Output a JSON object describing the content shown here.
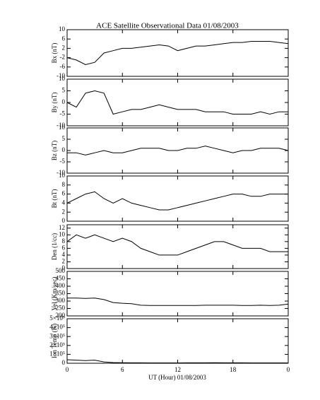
{
  "chart_data": [
    {
      "type": "line",
      "title": "ACE Satellite Observational Data   01/08/2003",
      "ylabel": "Bx (nT)",
      "x": [
        0,
        1,
        2,
        3,
        4,
        5,
        6,
        7,
        8,
        9,
        10,
        11,
        12,
        13,
        14,
        15,
        16,
        17,
        18,
        19,
        20,
        21,
        22,
        23,
        24
      ],
      "values": [
        -2,
        -3,
        -5,
        -4,
        0,
        1,
        2,
        2,
        2.5,
        3,
        3.5,
        3,
        1,
        2,
        3,
        3,
        3.5,
        4,
        4.5,
        4.5,
        5,
        5,
        5,
        4.5,
        4
      ],
      "ylim": [
        -10,
        10
      ],
      "yticks": [
        -10,
        -6,
        -2,
        2,
        6,
        10
      ],
      "color": "#000000"
    },
    {
      "type": "line",
      "ylabel": "By (nT)",
      "x": [
        0,
        1,
        2,
        3,
        4,
        5,
        6,
        7,
        8,
        9,
        10,
        11,
        12,
        13,
        14,
        15,
        16,
        17,
        18,
        19,
        20,
        21,
        22,
        23,
        24
      ],
      "values": [
        0,
        -2,
        4,
        5,
        4,
        -5,
        -4,
        -3,
        -3,
        -2,
        -1,
        -2,
        -3,
        -3,
        -3,
        -4,
        -4,
        -4,
        -5,
        -5,
        -5,
        -4,
        -5,
        -4,
        -4
      ],
      "ylim": [
        -10,
        10
      ],
      "yticks": [
        -10,
        -5,
        0,
        5,
        10
      ],
      "color": "#000000"
    },
    {
      "type": "line",
      "ylabel": "Bz (nT)",
      "x": [
        0,
        1,
        2,
        3,
        4,
        5,
        6,
        7,
        8,
        9,
        10,
        11,
        12,
        13,
        14,
        15,
        16,
        17,
        18,
        19,
        20,
        21,
        22,
        23,
        24
      ],
      "values": [
        -1,
        -1,
        -2,
        -1,
        0,
        -1,
        -1,
        0,
        1,
        1,
        1,
        0,
        0,
        1,
        1,
        2,
        1,
        0,
        -1,
        0,
        0,
        1,
        1,
        1,
        0
      ],
      "ylim": [
        -10,
        10
      ],
      "yticks": [
        -10,
        -5,
        0,
        5,
        10
      ],
      "color": "#000000"
    },
    {
      "type": "line",
      "ylabel": "Bt (nT)",
      "x": [
        0,
        1,
        2,
        3,
        4,
        5,
        6,
        7,
        8,
        9,
        10,
        11,
        12,
        13,
        14,
        15,
        16,
        17,
        18,
        19,
        20,
        21,
        22,
        23,
        24
      ],
      "values": [
        4,
        5,
        6,
        6.5,
        5,
        4,
        5,
        4,
        3.5,
        3,
        2.5,
        2.5,
        3,
        3.5,
        4,
        4.5,
        5,
        5.5,
        6,
        6,
        5.5,
        5.5,
        6,
        6,
        6
      ],
      "ylim": [
        0,
        10
      ],
      "yticks": [
        0,
        2,
        4,
        6,
        8,
        10
      ],
      "color": "#000000"
    },
    {
      "type": "line",
      "ylabel": "Den (1/cc)",
      "x": [
        0,
        1,
        2,
        3,
        4,
        5,
        6,
        7,
        8,
        9,
        10,
        11,
        12,
        13,
        14,
        15,
        16,
        17,
        18,
        19,
        20,
        21,
        22,
        23,
        24
      ],
      "values": [
        8,
        10,
        9,
        10,
        9,
        8,
        9,
        8,
        6,
        5,
        4,
        4,
        4,
        5,
        6,
        7,
        8,
        8,
        7,
        6,
        6,
        6,
        5,
        5,
        5
      ],
      "ylim": [
        0,
        13
      ],
      "yticks": [
        0,
        2,
        4,
        6,
        8,
        10,
        12
      ],
      "color": "#000000"
    },
    {
      "type": "line",
      "ylabel": "Vel (Km/sec)",
      "x": [
        0,
        1,
        2,
        3,
        4,
        5,
        6,
        7,
        8,
        9,
        10,
        11,
        12,
        13,
        14,
        15,
        16,
        17,
        18,
        19,
        20,
        21,
        22,
        23,
        24
      ],
      "values": [
        320,
        320,
        318,
        320,
        310,
        290,
        285,
        282,
        272,
        270,
        270,
        270,
        270,
        270,
        270,
        272,
        272,
        272,
        272,
        270,
        270,
        272,
        270,
        272,
        280
      ],
      "ylim": [
        200,
        500
      ],
      "yticks": [
        200,
        250,
        300,
        350,
        400,
        450,
        500
      ],
      "color": "#000000"
    },
    {
      "type": "line",
      "ylabel": "Ion Temp (K)",
      "xlabel": "UT (Hour)   01/08/2003",
      "x": [
        0,
        1,
        2,
        3,
        4,
        5,
        6,
        7,
        8,
        9,
        10,
        11,
        12,
        13,
        14,
        15,
        16,
        17,
        18,
        19,
        20,
        21,
        22,
        23,
        24
      ],
      "values": [
        40000,
        35000,
        30000,
        35000,
        15000,
        8000,
        6000,
        5000,
        5000,
        4000,
        4000,
        4000,
        4000,
        5000,
        5000,
        5000,
        6000,
        5000,
        5000,
        5000,
        4000,
        4000,
        4000,
        4000,
        4000
      ],
      "ylim": [
        0,
        500000
      ],
      "yticks": [
        0,
        {
          "value": 100000,
          "label": "1×10⁵"
        },
        {
          "value": 200000,
          "label": "2×10⁵"
        },
        {
          "value": 300000,
          "label": "3×10⁵"
        },
        {
          "value": 400000,
          "label": "4×10⁵"
        },
        {
          "value": 500000,
          "label": "5×10⁵"
        }
      ],
      "xlim": [
        0,
        24
      ],
      "xticks": [
        0,
        6,
        12,
        18,
        {
          "value": 24,
          "label": "0"
        }
      ],
      "color": "#000000"
    }
  ]
}
